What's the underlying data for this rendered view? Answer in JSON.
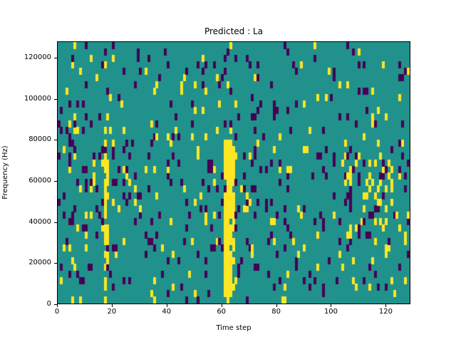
{
  "title": "Predicted : La",
  "axes": {
    "xlabel": "Time step",
    "ylabel": "Frequency (Hz)"
  },
  "chart_data": {
    "type": "heatmap",
    "title": "Predicted : La",
    "xlabel": "Time step",
    "ylabel": "Frequency (Hz)",
    "x_range": [
      0,
      129
    ],
    "y_range": [
      0,
      128000
    ],
    "x_ticks": [
      0,
      20,
      40,
      60,
      80,
      100,
      120
    ],
    "y_ticks": [
      0,
      20000,
      40000,
      60000,
      80000,
      100000,
      120000
    ],
    "grid": {
      "cols": 129,
      "rows": 40
    },
    "colors": {
      "background": "#21918c",
      "low": "#440154",
      "high": "#fde725"
    },
    "legend": "none",
    "pattern": {
      "seed": 11,
      "purple_density": 0.055,
      "yellow_density": 0.035,
      "yellow_columns": [
        {
          "col": 17,
          "row_start": 0,
          "row_end": 26,
          "density": 0.75
        },
        {
          "col": 18,
          "row_start": 3,
          "row_end": 22,
          "density": 0.45
        },
        {
          "col": 61,
          "row_start": 1,
          "row_end": 24,
          "density": 0.92
        },
        {
          "col": 62,
          "row_start": 0,
          "row_end": 24,
          "density": 0.97
        },
        {
          "col": 63,
          "row_start": 0,
          "row_end": 24,
          "density": 0.95
        },
        {
          "col": 64,
          "row_start": 1,
          "row_end": 23,
          "density": 0.6
        }
      ],
      "clusters": [
        {
          "col_start": 104,
          "col_end": 122,
          "row_start": 8,
          "row_end": 22,
          "yellow_density": 0.16,
          "purple_density": 0.14
        },
        {
          "col_start": 20,
          "col_end": 30,
          "row_start": 12,
          "row_end": 24,
          "yellow_density": 0.05,
          "purple_density": 0.16
        },
        {
          "col_start": 55,
          "col_end": 72,
          "row_start": 6,
          "row_end": 22,
          "yellow_density": 0.06,
          "purple_density": 0.16
        },
        {
          "col_start": 0,
          "col_end": 12,
          "row_start": 0,
          "row_end": 20,
          "yellow_density": 0.07,
          "purple_density": 0.1
        }
      ]
    }
  }
}
